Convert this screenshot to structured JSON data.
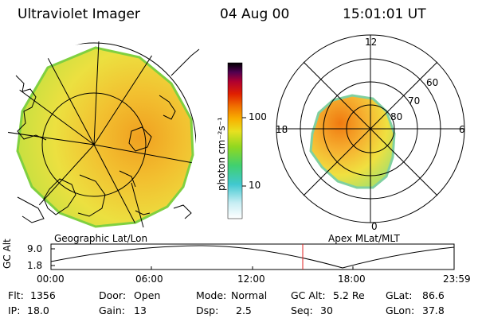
{
  "header": {
    "instrument": "Ultraviolet Imager",
    "date": "04 Aug 00",
    "time": "15:01:01 UT"
  },
  "left_map": {
    "caption": "Geographic Lat/Lon"
  },
  "right_map": {
    "caption": "Apex MLat/MLT",
    "mlt_labels": [
      "12",
      "18",
      "6",
      "0"
    ],
    "mlat_labels": [
      "60",
      "70",
      "80"
    ]
  },
  "colorbar": {
    "unit_label": "photon cm⁻²s⁻¹",
    "tick_labels": [
      "100",
      "10"
    ],
    "tick_values": [
      100,
      10
    ],
    "scale": "log",
    "colors": [
      "#ffffff",
      "#bfe8f0",
      "#40c8d0",
      "#40d070",
      "#80d020",
      "#e8e020",
      "#f8b000",
      "#f07000",
      "#e02000",
      "#b00030",
      "#500050",
      "#000000"
    ]
  },
  "altitude_plot": {
    "ylabel": "GC Alt",
    "y_ticks": [
      "9.0",
      "1.8"
    ],
    "x_ticks": [
      "00:00",
      "06:00",
      "12:00",
      "18:00",
      "23:59"
    ],
    "current_marker_time": "15:01"
  },
  "info": {
    "flt_label": "Flt:",
    "flt_value": "1356",
    "ip_label": "IP:",
    "ip_value": "18.0",
    "door_label": "Door:",
    "door_value": "Open",
    "gain_label": "Gain:",
    "gain_value": "13",
    "mode_label": "Mode:",
    "mode_value": "Normal",
    "dsp_label": "Dsp:",
    "dsp_value": "2.5",
    "gcalt_label": "GC Alt:",
    "gcalt_value": "5.2 Re",
    "seq_label": "Seq:",
    "seq_value": "30",
    "glat_label": "GLat:",
    "glat_value": "86.6",
    "glon_label": "GLon:",
    "glon_value": "37.8"
  }
}
